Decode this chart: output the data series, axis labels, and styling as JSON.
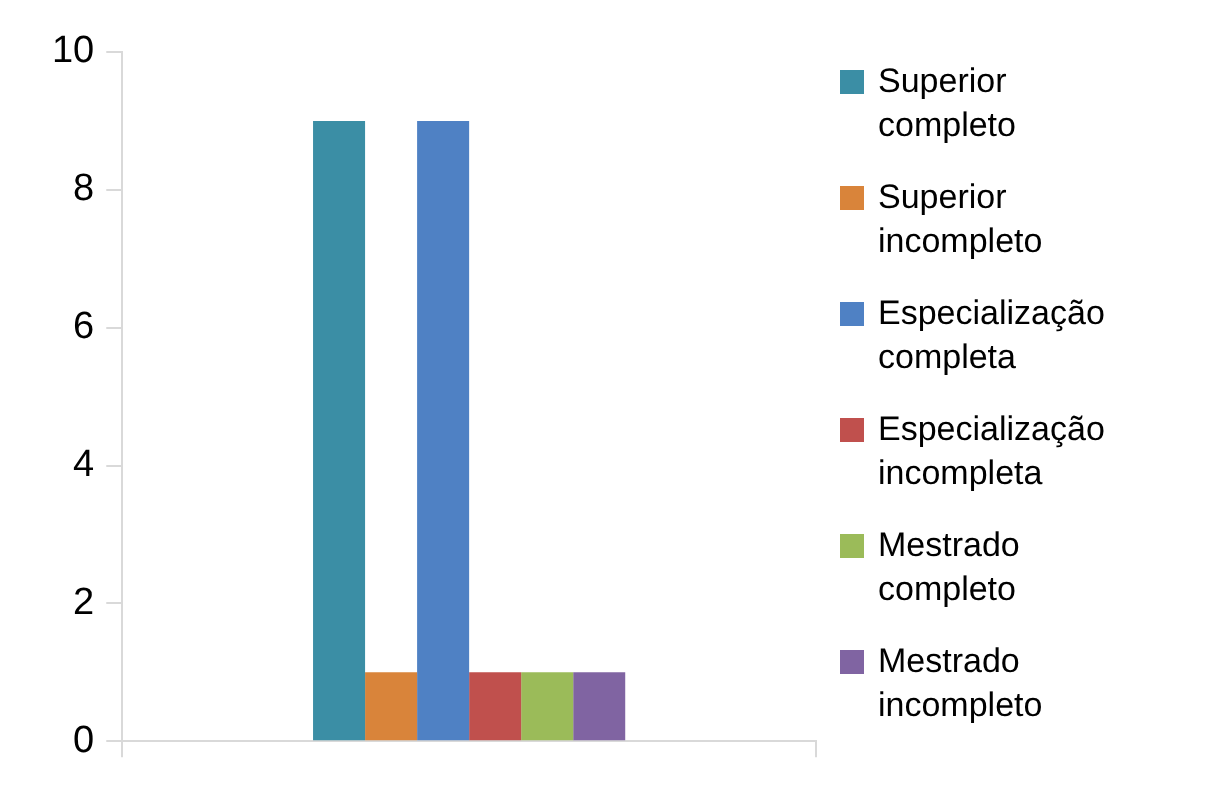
{
  "chart_data": {
    "type": "bar",
    "categories": [
      null
    ],
    "series": [
      {
        "name": "Superior completo",
        "color": "#3b8ea5",
        "values": [
          9
        ]
      },
      {
        "name": "Superior incompleto",
        "color": "#d9843a",
        "values": [
          1
        ]
      },
      {
        "name": "Especialização completa",
        "color": "#4f81c4",
        "values": [
          9
        ]
      },
      {
        "name": "Especialização incompleta",
        "color": "#c0504d",
        "values": [
          1
        ]
      },
      {
        "name": "Mestrado completo",
        "color": "#9bbb59",
        "values": [
          1
        ]
      },
      {
        "name": "Mestrado incompleto",
        "color": "#8064a2",
        "values": [
          1
        ]
      }
    ],
    "ylim": [
      0,
      10
    ],
    "yticks": [
      0,
      2,
      4,
      6,
      8,
      10
    ],
    "grid": false,
    "legend": "right"
  }
}
